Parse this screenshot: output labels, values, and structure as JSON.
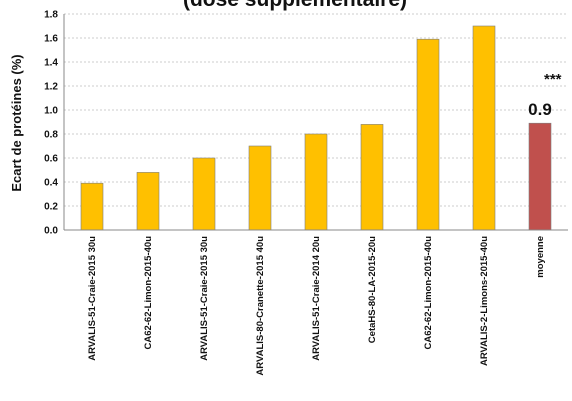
{
  "chart_data": {
    "type": "bar",
    "title": "(dose supplémentaire)",
    "ylabel": "Ecart de protéines (%)",
    "xlabel": "",
    "ylim": [
      0,
      1.8
    ],
    "yticks": [
      "0.0",
      "0.2",
      "0.4",
      "0.6",
      "0.8",
      "1.0",
      "1.2",
      "1.4",
      "1.6",
      "1.8"
    ],
    "grid": true,
    "categories": [
      "ARVALIS-51-Craie-2015 30u",
      "CA62-62-Limon-2015-40u",
      "ARVALIS-51-Craie-2015 30u",
      "ARVALIS-80-Cranette-2015 40u",
      "ARVALIS-51-Craie-2014 20u",
      "CetaHS-80-LA-2015-20u",
      "CA62-62-Limon-2015-40u",
      "ARVALIS-2-Limons-2015-40u",
      "moyenne"
    ],
    "values": [
      0.39,
      0.48,
      0.6,
      0.7,
      0.8,
      0.88,
      1.59,
      1.7,
      0.89
    ],
    "colors": [
      "#FFC000",
      "#FFC000",
      "#FFC000",
      "#FFC000",
      "#FFC000",
      "#FFC000",
      "#FFC000",
      "#FFC000",
      "#C0504D"
    ],
    "annotations": {
      "mean_label": "0.9",
      "significance": "***"
    }
  }
}
